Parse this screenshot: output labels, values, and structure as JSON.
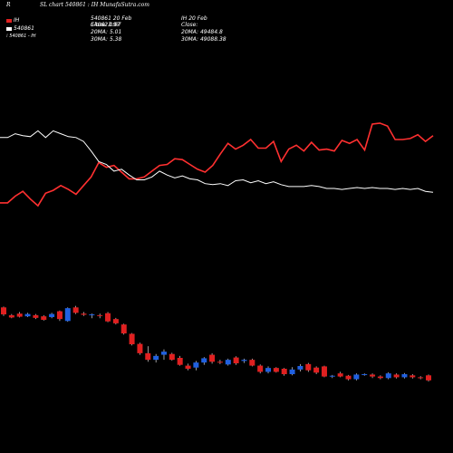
{
  "header": {
    "corner_label": "R",
    "title": "SL chart 540861 : IH MunafaSutra.com"
  },
  "legend": {
    "series1_swatch_label": "IH",
    "series1_swatch_color": "#e02020",
    "series2_label": "540861",
    "series3_label": "540861 - IH"
  },
  "info_col1": {
    "line1": "540861 20 Feb",
    "line2": "Close: 0.97",
    "overlay": "540623.97",
    "line3": "20MA: 5.01",
    "line4": "30MA: 5.38"
  },
  "info_col2": {
    "line1": "IH 20 Feb",
    "line2": "Close:",
    "line3": "20MA: 49484.8",
    "line4": "30MA: 49088.38"
  },
  "colors": {
    "up_candle": "#e02020",
    "down_candle": "#2060e0",
    "red_line": "#ff3030",
    "white_line": "#ffffff",
    "background": "#000000"
  },
  "chart_data": {
    "type": "line",
    "series": [
      {
        "color": "#ff3030",
        "values": [
          0.18,
          0.18,
          0.25,
          0.3,
          0.22,
          0.15,
          0.28,
          0.31,
          0.36,
          0.32,
          0.27,
          0.36,
          0.45,
          0.6,
          0.55,
          0.57,
          0.5,
          0.43,
          0.43,
          0.45,
          0.51,
          0.57,
          0.58,
          0.64,
          0.63,
          0.58,
          0.53,
          0.5,
          0.57,
          0.69,
          0.8,
          0.74,
          0.78,
          0.84,
          0.75,
          0.75,
          0.82,
          0.61,
          0.74,
          0.78,
          0.72,
          0.81,
          0.73,
          0.74,
          0.72,
          0.83,
          0.8,
          0.84,
          0.73,
          1.0,
          1.01,
          0.98,
          0.84,
          0.84,
          0.85,
          0.89,
          0.82,
          0.88
        ]
      },
      {
        "color": "#ffffff",
        "values": [
          0.86,
          0.86,
          0.9,
          0.88,
          0.87,
          0.93,
          0.86,
          0.93,
          0.9,
          0.87,
          0.86,
          0.82,
          0.72,
          0.61,
          0.58,
          0.51,
          0.53,
          0.47,
          0.42,
          0.42,
          0.45,
          0.51,
          0.47,
          0.44,
          0.46,
          0.43,
          0.42,
          0.38,
          0.37,
          0.38,
          0.36,
          0.41,
          0.42,
          0.39,
          0.41,
          0.38,
          0.4,
          0.37,
          0.35,
          0.35,
          0.35,
          0.36,
          0.35,
          0.33,
          0.33,
          0.32,
          0.33,
          0.34,
          0.33,
          0.34,
          0.33,
          0.33,
          0.32,
          0.33,
          0.32,
          0.33,
          0.3,
          0.29
        ]
      }
    ],
    "candles": [
      {
        "o": 0.8,
        "c": 0.62,
        "h": 0.82,
        "l": 0.58
      },
      {
        "o": 0.6,
        "c": 0.54,
        "h": 0.63,
        "l": 0.52
      },
      {
        "o": 0.64,
        "c": 0.56,
        "h": 0.68,
        "l": 0.54
      },
      {
        "o": 0.57,
        "c": 0.63,
        "h": 0.66,
        "l": 0.55
      },
      {
        "o": 0.6,
        "c": 0.53,
        "h": 0.63,
        "l": 0.5
      },
      {
        "o": 0.57,
        "c": 0.48,
        "h": 0.6,
        "l": 0.46
      },
      {
        "o": 0.55,
        "c": 0.63,
        "h": 0.66,
        "l": 0.52
      },
      {
        "o": 0.7,
        "c": 0.5,
        "h": 0.72,
        "l": 0.45
      },
      {
        "o": 0.45,
        "c": 0.78,
        "h": 0.8,
        "l": 0.43
      },
      {
        "o": 0.8,
        "c": 0.66,
        "h": 0.84,
        "l": 0.63
      },
      {
        "o": 0.64,
        "c": 0.61,
        "h": 0.68,
        "l": 0.58
      },
      {
        "o": 0.6,
        "c": 0.62,
        "h": 0.64,
        "l": 0.52
      },
      {
        "o": 0.6,
        "c": 0.59,
        "h": 0.64,
        "l": 0.52
      },
      {
        "o": 0.65,
        "c": 0.44,
        "h": 0.68,
        "l": 0.42
      },
      {
        "o": 0.5,
        "c": 0.39,
        "h": 0.53,
        "l": 0.36
      },
      {
        "o": 0.36,
        "c": 0.13,
        "h": 0.38,
        "l": 0.1
      },
      {
        "o": 0.12,
        "c": -0.15,
        "h": 0.14,
        "l": -0.18
      },
      {
        "o": -0.14,
        "c": -0.38,
        "h": -0.11,
        "l": -0.42
      },
      {
        "o": -0.38,
        "c": -0.55,
        "h": -0.2,
        "l": -0.6
      },
      {
        "o": -0.55,
        "c": -0.45,
        "h": -0.4,
        "l": -0.62
      },
      {
        "o": -0.42,
        "c": -0.34,
        "h": -0.28,
        "l": -0.55
      },
      {
        "o": -0.4,
        "c": -0.55,
        "h": -0.37,
        "l": -0.57
      },
      {
        "o": -0.5,
        "c": -0.68,
        "h": -0.45,
        "l": -0.7
      },
      {
        "o": -0.7,
        "c": -0.78,
        "h": -0.65,
        "l": -0.82
      },
      {
        "o": -0.75,
        "c": -0.62,
        "h": -0.58,
        "l": -0.82
      },
      {
        "o": -0.62,
        "c": -0.51,
        "h": -0.48,
        "l": -0.68
      },
      {
        "o": -0.42,
        "c": -0.6,
        "h": -0.38,
        "l": -0.65
      },
      {
        "o": -0.6,
        "c": -0.62,
        "h": -0.55,
        "l": -0.66
      },
      {
        "o": -0.67,
        "c": -0.55,
        "h": -0.52,
        "l": -0.7
      },
      {
        "o": -0.49,
        "c": -0.64,
        "h": -0.46,
        "l": -0.68
      },
      {
        "o": -0.58,
        "c": -0.55,
        "h": -0.52,
        "l": -0.63
      },
      {
        "o": -0.55,
        "c": -0.7,
        "h": -0.52,
        "l": -0.72
      },
      {
        "o": -0.7,
        "c": -0.86,
        "h": -0.67,
        "l": -0.9
      },
      {
        "o": -0.86,
        "c": -0.76,
        "h": -0.72,
        "l": -0.9
      },
      {
        "o": -0.76,
        "c": -0.86,
        "h": -0.74,
        "l": -0.88
      },
      {
        "o": -0.78,
        "c": -0.92,
        "h": -0.76,
        "l": -0.96
      },
      {
        "o": -0.92,
        "c": -0.8,
        "h": -0.74,
        "l": -0.95
      },
      {
        "o": -0.8,
        "c": -0.71,
        "h": -0.66,
        "l": -0.85
      },
      {
        "o": -0.66,
        "c": -0.82,
        "h": -0.63,
        "l": -0.86
      },
      {
        "o": -0.75,
        "c": -0.88,
        "h": -0.72,
        "l": -0.92
      },
      {
        "o": -0.72,
        "c": -0.98,
        "h": -0.7,
        "l": -1.0
      },
      {
        "o": -0.98,
        "c": -0.96,
        "h": -0.94,
        "l": -1.02
      },
      {
        "o": -0.9,
        "c": -0.98,
        "h": -0.86,
        "l": -1.0
      },
      {
        "o": -0.96,
        "c": -1.05,
        "h": -0.94,
        "l": -1.08
      },
      {
        "o": -1.05,
        "c": -0.93,
        "h": -0.9,
        "l": -1.08
      },
      {
        "o": -0.93,
        "c": -0.92,
        "h": -0.9,
        "l": -0.96
      },
      {
        "o": -0.93,
        "c": -0.98,
        "h": -0.9,
        "l": -1.02
      },
      {
        "o": -0.98,
        "c": -1.02,
        "h": -0.95,
        "l": -1.05
      },
      {
        "o": -1.02,
        "c": -0.9,
        "h": -0.87,
        "l": -1.05
      },
      {
        "o": -0.93,
        "c": -1.0,
        "h": -0.9,
        "l": -1.03
      },
      {
        "o": -1.0,
        "c": -0.92,
        "h": -0.89,
        "l": -1.03
      },
      {
        "o": -0.95,
        "c": -1.0,
        "h": -0.92,
        "l": -1.03
      },
      {
        "o": -1.0,
        "c": -1.02,
        "h": -0.97,
        "l": -1.05
      },
      {
        "o": -0.95,
        "c": -1.08,
        "h": -0.93,
        "l": -1.11
      }
    ]
  }
}
